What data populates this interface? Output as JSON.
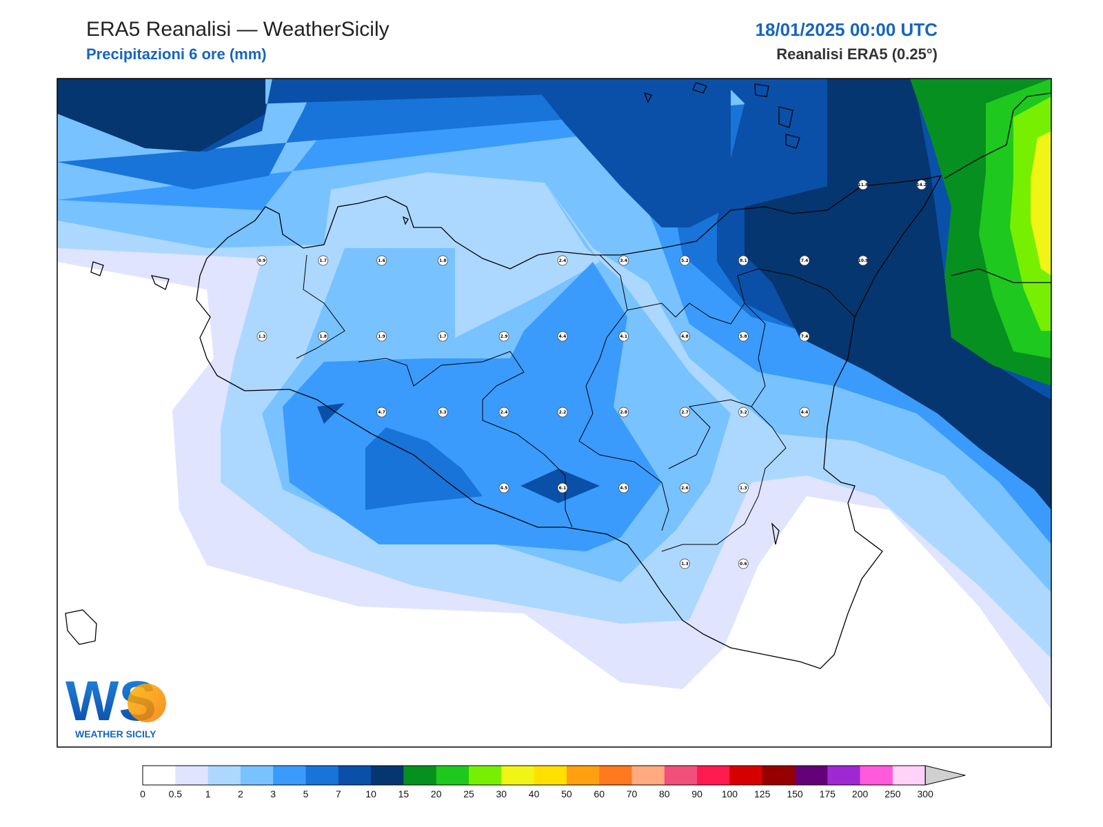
{
  "header": {
    "title": "ERA5 Reanalisi — WeatherSicily",
    "subtitle": "Precipitazioni 6 ore (mm)",
    "datetime": "18/01/2025 00:00 UTC",
    "source": "Reanalisi ERA5 (0.25°)"
  },
  "logo": {
    "initials": "WS",
    "name": "WEATHER SICILY"
  },
  "colorbar": {
    "ticks": [
      "0",
      "0.5",
      "1",
      "2",
      "3",
      "5",
      "7",
      "10",
      "15",
      "20",
      "25",
      "30",
      "40",
      "50",
      "60",
      "70",
      "80",
      "90",
      "100",
      "125",
      "150",
      "175",
      "200",
      "250",
      "300"
    ],
    "colors": [
      "#ffffff",
      "#e0e4ff",
      "#acd8ff",
      "#78c2ff",
      "#3a9bfd",
      "#1874d8",
      "#0a50a8",
      "#063670",
      "#069020",
      "#1ec81e",
      "#76f000",
      "#f0f516",
      "#ffe000",
      "#ffa010",
      "#ff7a1e",
      "#ffaa80",
      "#f0507a",
      "#ff1a50",
      "#d70000",
      "#960000",
      "#640078",
      "#a028d2",
      "#ff5adc",
      "#ffd2f8"
    ]
  },
  "stations": [
    {
      "value": "0.9",
      "lon": 12.53,
      "lat": 38.12
    },
    {
      "value": "1.7",
      "lon": 12.76,
      "lat": 38.12
    },
    {
      "value": "1.6",
      "lon": 12.98,
      "lat": 38.12
    },
    {
      "value": "1.8",
      "lon": 13.21,
      "lat": 38.12
    },
    {
      "value": "2.4",
      "lon": 13.66,
      "lat": 38.12
    },
    {
      "value": "3.4",
      "lon": 13.89,
      "lat": 38.12
    },
    {
      "value": "5.2",
      "lon": 14.12,
      "lat": 38.12
    },
    {
      "value": "8.1",
      "lon": 14.34,
      "lat": 38.12
    },
    {
      "value": "7.4",
      "lon": 14.57,
      "lat": 38.12
    },
    {
      "value": "10.9",
      "lon": 14.79,
      "lat": 38.12
    },
    {
      "value": "11.8",
      "lon": 14.79,
      "lat": 38.4
    },
    {
      "value": "14.2",
      "lon": 15.01,
      "lat": 38.4
    },
    {
      "value": "1.3",
      "lon": 12.53,
      "lat": 37.84
    },
    {
      "value": "1.8",
      "lon": 12.76,
      "lat": 37.84
    },
    {
      "value": "1.9",
      "lon": 12.98,
      "lat": 37.84
    },
    {
      "value": "1.7",
      "lon": 13.21,
      "lat": 37.84
    },
    {
      "value": "2.9",
      "lon": 13.44,
      "lat": 37.84
    },
    {
      "value": "4.4",
      "lon": 13.66,
      "lat": 37.84
    },
    {
      "value": "4.1",
      "lon": 13.89,
      "lat": 37.84
    },
    {
      "value": "4.8",
      "lon": 14.12,
      "lat": 37.84
    },
    {
      "value": "5.8",
      "lon": 14.34,
      "lat": 37.84
    },
    {
      "value": "7.4",
      "lon": 14.57,
      "lat": 37.84
    },
    {
      "value": "4.7",
      "lon": 12.98,
      "lat": 37.56
    },
    {
      "value": "3.3",
      "lon": 13.21,
      "lat": 37.56
    },
    {
      "value": "2.4",
      "lon": 13.44,
      "lat": 37.56
    },
    {
      "value": "2.2",
      "lon": 13.66,
      "lat": 37.56
    },
    {
      "value": "2.8",
      "lon": 13.89,
      "lat": 37.56
    },
    {
      "value": "2.7",
      "lon": 14.12,
      "lat": 37.56
    },
    {
      "value": "3.2",
      "lon": 14.34,
      "lat": 37.56
    },
    {
      "value": "4.4",
      "lon": 14.57,
      "lat": 37.56
    },
    {
      "value": "4.5",
      "lon": 13.44,
      "lat": 37.28
    },
    {
      "value": "6.1",
      "lon": 13.66,
      "lat": 37.28
    },
    {
      "value": "4.5",
      "lon": 13.89,
      "lat": 37.28
    },
    {
      "value": "2.6",
      "lon": 14.12,
      "lat": 37.28
    },
    {
      "value": "1.3",
      "lon": 14.34,
      "lat": 37.28
    },
    {
      "value": "1.3",
      "lon": 14.12,
      "lat": 37.0
    },
    {
      "value": "0.6",
      "lon": 14.34,
      "lat": 37.0
    }
  ]
}
